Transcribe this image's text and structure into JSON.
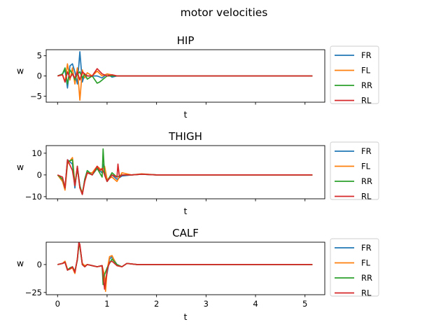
{
  "figure": {
    "suptitle": "motor velocities"
  },
  "colors": {
    "FR": "#1f77b4",
    "FL": "#ff7f0e",
    "RR": "#2ca02c",
    "RL": "#d62728"
  },
  "chart_data": [
    {
      "type": "line",
      "title": "HIP",
      "xlabel": "t",
      "ylabel": "w",
      "xlim": [
        -0.23,
        5.4
      ],
      "ylim": [
        -6.5,
        6.5
      ],
      "xticks": [
        0,
        1,
        2,
        3,
        4,
        5
      ],
      "show_xticklabels": false,
      "yticks": [
        -5,
        0,
        5
      ],
      "yticklabels": [
        "−5",
        "0",
        "5"
      ],
      "legend": "outside-right",
      "series": [
        {
          "name": "FR",
          "x": [
            0,
            0.1,
            0.15,
            0.2,
            0.25,
            0.3,
            0.35,
            0.4,
            0.45,
            0.5,
            0.55,
            0.6,
            0.7,
            0.8,
            0.9,
            1.0,
            1.1,
            1.2,
            1.4,
            5.15
          ],
          "y": [
            0,
            0.5,
            1.5,
            -3.0,
            2.5,
            3.0,
            1.0,
            -2.0,
            6.0,
            -1.5,
            0.5,
            0,
            0,
            0,
            -0.5,
            0.5,
            -0.3,
            0,
            0,
            0
          ]
        },
        {
          "name": "FL",
          "x": [
            0,
            0.1,
            0.15,
            0.2,
            0.25,
            0.3,
            0.35,
            0.4,
            0.45,
            0.5,
            0.55,
            0.6,
            0.7,
            0.8,
            0.9,
            1.0,
            1.2,
            1.4,
            5.15
          ],
          "y": [
            0,
            0.3,
            -1.5,
            3.0,
            -1.0,
            2.0,
            -2.0,
            2.0,
            -6.0,
            1.5,
            -0.5,
            0.8,
            0,
            1.2,
            0,
            0.5,
            0,
            0,
            0
          ]
        },
        {
          "name": "RR",
          "x": [
            0,
            0.1,
            0.15,
            0.2,
            0.25,
            0.3,
            0.35,
            0.4,
            0.45,
            0.5,
            0.55,
            0.6,
            0.7,
            0.8,
            0.85,
            0.9,
            0.95,
            1.0,
            1.2,
            1.4,
            5.15
          ],
          "y": [
            0,
            0.5,
            2.0,
            -2.0,
            1.5,
            0.5,
            -1.0,
            0.5,
            1.0,
            -0.5,
            0.5,
            -0.8,
            0,
            -1.8,
            -1.5,
            -1.0,
            -0.5,
            0,
            0,
            0,
            0
          ]
        },
        {
          "name": "RL",
          "x": [
            0,
            0.1,
            0.15,
            0.2,
            0.25,
            0.3,
            0.35,
            0.4,
            0.45,
            0.5,
            0.6,
            0.7,
            0.8,
            0.9,
            1.0,
            1.1,
            1.2,
            1.4,
            5.15
          ],
          "y": [
            0,
            0.3,
            -1.5,
            1.0,
            -0.5,
            0.5,
            -0.5,
            1.0,
            -1.0,
            1.0,
            0,
            0,
            1.8,
            0.5,
            0,
            0.3,
            0,
            0,
            0
          ]
        }
      ]
    },
    {
      "type": "line",
      "title": "THIGH",
      "xlabel": "t",
      "ylabel": "w",
      "xlim": [
        -0.23,
        5.4
      ],
      "ylim": [
        -11,
        13.5
      ],
      "xticks": [
        0,
        1,
        2,
        3,
        4,
        5
      ],
      "show_xticklabels": false,
      "yticks": [
        -10,
        0,
        10
      ],
      "yticklabels": [
        "−10",
        "0",
        "10"
      ],
      "legend": "outside-right",
      "series": [
        {
          "name": "FR",
          "x": [
            0,
            0.1,
            0.15,
            0.2,
            0.3,
            0.35,
            0.4,
            0.45,
            0.5,
            0.55,
            0.6,
            0.7,
            0.8,
            0.9,
            0.93,
            0.97,
            1.0,
            1.1,
            1.2,
            1.3,
            1.5,
            1.7,
            2.0,
            5.15
          ],
          "y": [
            0,
            -2,
            -6,
            7,
            5,
            -6,
            4,
            -5,
            -9,
            -2,
            2,
            0,
            3,
            1,
            5,
            -1,
            -3,
            0,
            -2,
            -0.5,
            0,
            0.3,
            0,
            0
          ]
        },
        {
          "name": "FL",
          "x": [
            0,
            0.1,
            0.15,
            0.2,
            0.3,
            0.35,
            0.4,
            0.45,
            0.5,
            0.55,
            0.6,
            0.7,
            0.8,
            0.9,
            0.95,
            1.0,
            1.1,
            1.2,
            1.3,
            1.5,
            1.7,
            2.0,
            5.15
          ],
          "y": [
            0,
            -3,
            -7,
            5,
            8,
            -4,
            3,
            -6,
            -8,
            -3,
            1,
            1,
            4,
            2,
            4,
            -2,
            -1,
            -3,
            1,
            0,
            0.5,
            0,
            0
          ]
        },
        {
          "name": "RR",
          "x": [
            0,
            0.1,
            0.15,
            0.2,
            0.3,
            0.35,
            0.4,
            0.45,
            0.5,
            0.55,
            0.6,
            0.7,
            0.8,
            0.9,
            0.92,
            0.95,
            1.0,
            1.1,
            1.2,
            1.3,
            1.5,
            1.7,
            2.0,
            5.15
          ],
          "y": [
            0,
            -2,
            -6,
            6,
            7,
            -5,
            3,
            -5,
            -9,
            -2,
            2,
            0,
            3,
            -1,
            12,
            0,
            -3,
            1,
            -1,
            0,
            0,
            0.3,
            0,
            0
          ]
        },
        {
          "name": "RL",
          "x": [
            0,
            0.1,
            0.15,
            0.2,
            0.3,
            0.35,
            0.4,
            0.45,
            0.5,
            0.55,
            0.6,
            0.7,
            0.8,
            0.85,
            0.9,
            1.0,
            1.1,
            1.2,
            1.22,
            1.25,
            1.3,
            1.5,
            1.7,
            2.0,
            5.15
          ],
          "y": [
            0,
            -1,
            -6,
            7,
            2,
            -5,
            4,
            -6,
            -9,
            -3,
            1,
            0,
            4,
            2,
            3,
            -3,
            0,
            -1,
            5,
            -1,
            0,
            0,
            0.3,
            0,
            0
          ]
        }
      ]
    },
    {
      "type": "line",
      "title": "CALF",
      "xlabel": "t",
      "ylabel": "w",
      "xlim": [
        -0.23,
        5.4
      ],
      "ylim": [
        -27,
        20
      ],
      "xticks": [
        0,
        1,
        2,
        3,
        4,
        5
      ],
      "xticklabels": [
        "0",
        "1",
        "2",
        "3",
        "4",
        "5"
      ],
      "show_xticklabels": true,
      "yticks": [
        -25,
        0
      ],
      "yticklabels": [
        "−25",
        "0"
      ],
      "legend": "outside-right",
      "series": [
        {
          "name": "FR",
          "x": [
            0,
            0.1,
            0.15,
            0.2,
            0.25,
            0.3,
            0.35,
            0.4,
            0.43,
            0.45,
            0.5,
            0.55,
            0.6,
            0.7,
            0.8,
            0.9,
            0.93,
            0.95,
            1.0,
            1.05,
            1.1,
            1.2,
            1.3,
            1.4,
            1.6,
            2.0,
            5.15
          ],
          "y": [
            0,
            1,
            2,
            -5,
            -3,
            -2,
            -6,
            4,
            19,
            17,
            0,
            -2,
            0,
            -1,
            -2,
            -1,
            -15,
            -20,
            -8,
            5,
            7,
            0,
            -2,
            1,
            0,
            0,
            0
          ]
        },
        {
          "name": "FL",
          "x": [
            0,
            0.1,
            0.15,
            0.2,
            0.25,
            0.3,
            0.35,
            0.4,
            0.43,
            0.45,
            0.5,
            0.55,
            0.6,
            0.7,
            0.8,
            0.9,
            0.95,
            0.97,
            1.0,
            1.05,
            1.1,
            1.2,
            1.3,
            1.4,
            1.6,
            2.0,
            5.15
          ],
          "y": [
            0,
            1,
            3,
            -4,
            -4,
            -3,
            -8,
            5,
            18,
            16,
            1,
            -1,
            0,
            -1,
            -2,
            -1,
            -10,
            -24,
            -5,
            7,
            8,
            -1,
            -2,
            1,
            0,
            0,
            0
          ]
        },
        {
          "name": "RR",
          "x": [
            0,
            0.1,
            0.15,
            0.2,
            0.25,
            0.3,
            0.35,
            0.4,
            0.43,
            0.45,
            0.5,
            0.55,
            0.6,
            0.7,
            0.8,
            0.9,
            0.92,
            0.94,
            1.0,
            1.1,
            1.2,
            1.3,
            1.4,
            1.6,
            2.0,
            5.15
          ],
          "y": [
            0,
            1,
            2,
            -5,
            -3,
            -2,
            -6,
            4,
            18,
            16,
            0,
            -2,
            0,
            -1,
            -2,
            -1,
            -18,
            -10,
            -3,
            5,
            0,
            -2,
            1,
            0,
            0,
            0
          ]
        },
        {
          "name": "RL",
          "x": [
            0,
            0.1,
            0.15,
            0.2,
            0.25,
            0.3,
            0.35,
            0.4,
            0.43,
            0.45,
            0.5,
            0.55,
            0.6,
            0.7,
            0.8,
            0.9,
            0.95,
            1.0,
            1.05,
            1.1,
            1.2,
            1.3,
            1.4,
            1.6,
            2.0,
            5.15
          ],
          "y": [
            0,
            1,
            2,
            -5,
            -4,
            -2,
            -7,
            5,
            20,
            18,
            0,
            -2,
            0,
            -1,
            -2,
            -1,
            -22,
            -5,
            2,
            3,
            -1,
            -2,
            1,
            0,
            0,
            0
          ]
        }
      ]
    }
  ]
}
